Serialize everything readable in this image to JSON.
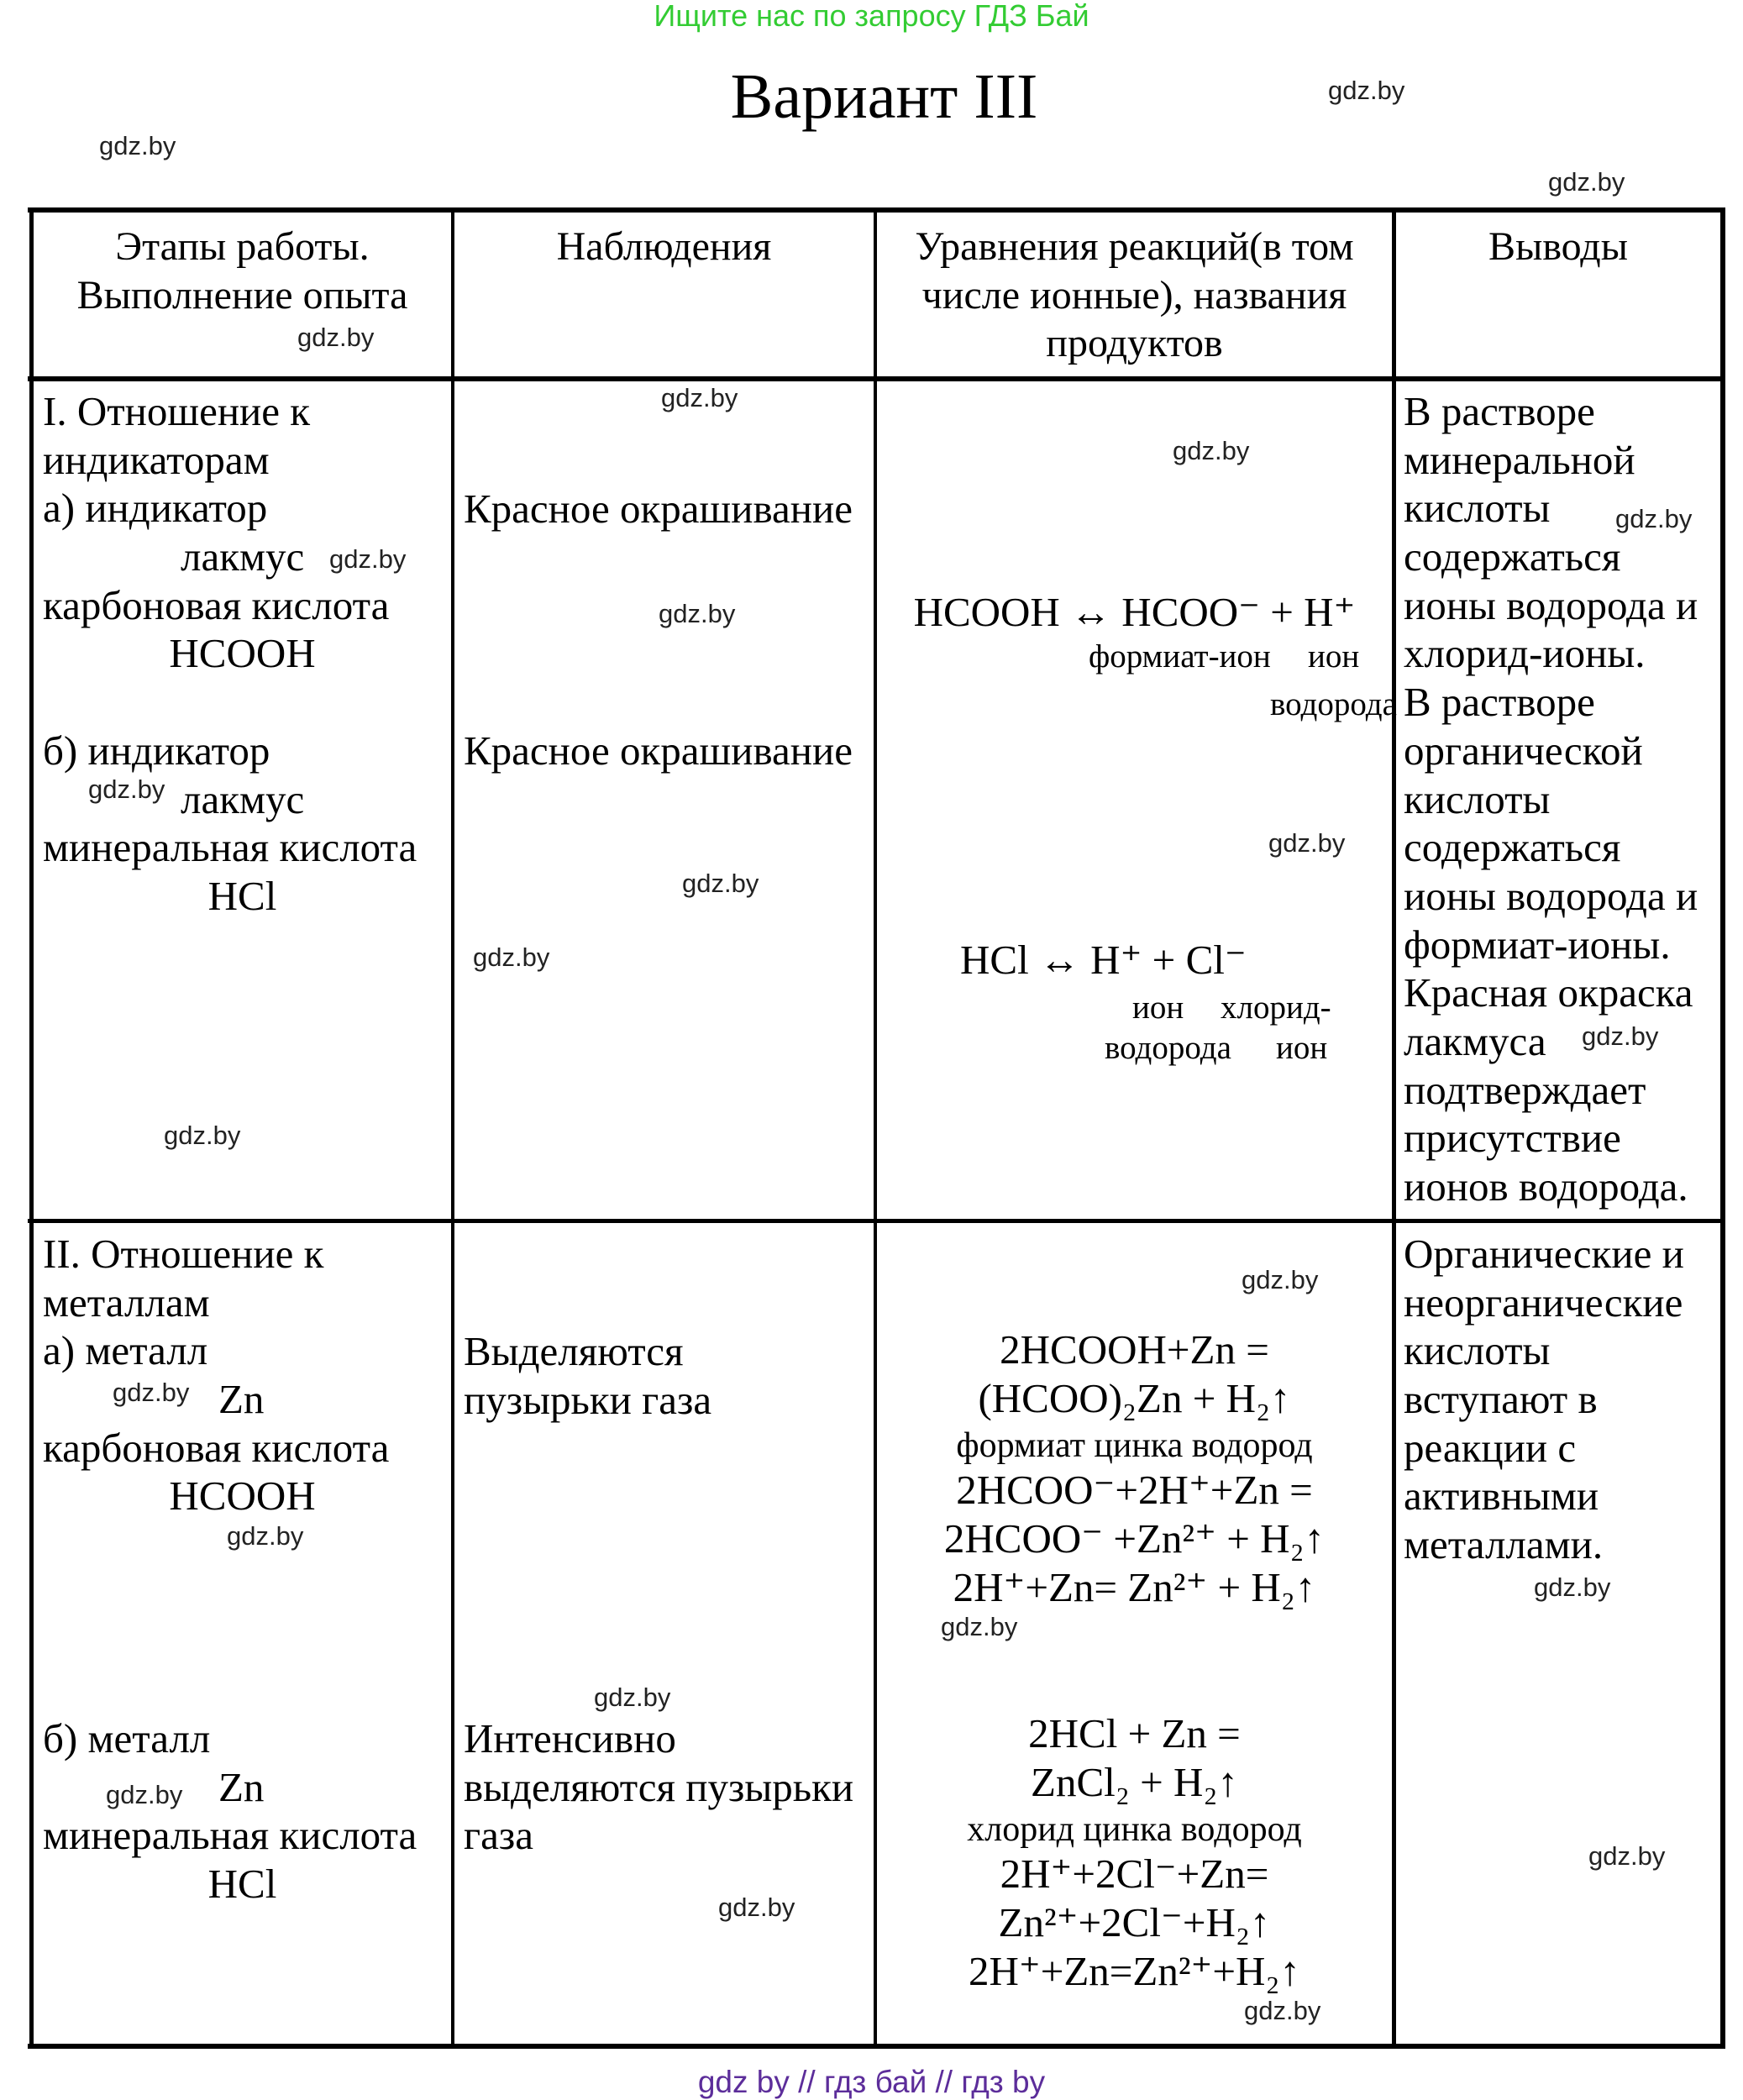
{
  "banner": "Ищите нас по запросу ГДЗ Бай",
  "title": "Вариант III",
  "watermark": "gdz.by",
  "footer": "gdz by  //  гдз бай  //  гдз by",
  "header": {
    "col1": [
      "Этапы работы.",
      "Выполнение опыта"
    ],
    "col2": "Наблюдения",
    "col3": [
      "Уравнения реакций(в том",
      "числе ионные), названия",
      "продуктов"
    ],
    "col4": "Выводы"
  },
  "row1": {
    "steps_a": [
      "I. Отношение к",
      "индикаторам",
      "а) индикатор",
      "лакмус",
      "карбоновая кислота",
      "HCOOH"
    ],
    "steps_b": [
      "б) индикатор",
      "лакмус",
      "минеральная кислота",
      "HCl"
    ],
    "obs_a": "Красное окрашивание",
    "obs_b": "Красное окрашивание",
    "eq_a": "HCOOH ↔ HCOO⁻ + H⁺",
    "eq_a_labels": [
      "формиат-ион",
      "ион",
      "водорода"
    ],
    "eq_b": "HCl  ↔  H⁺ + Cl⁻",
    "eq_b_labels": [
      "ион",
      "хлорид-",
      "водорода",
      "ион"
    ],
    "conclusion": [
      "В растворе",
      "минеральной",
      "кислоты",
      "содержаться",
      "ионы водорода и",
      "хлорид-ионы.",
      "В растворе",
      "органической",
      "кислоты",
      "содержаться",
      "ионы водорода и",
      "формиат-ионы.",
      "Красная окраска",
      "лакмуса",
      "подтверждает",
      "присутствие",
      "ионов водорода."
    ]
  },
  "row2": {
    "steps_a": [
      "II. Отношение к",
      "металлам",
      "а) металл",
      "Zn",
      "карбоновая кислота",
      "HCOOH"
    ],
    "steps_b": [
      "б) металл",
      "Zn",
      "минеральная кислота",
      "HCl"
    ],
    "obs_a": [
      "Выделяются",
      "пузырьки газа"
    ],
    "obs_b": [
      "Интенсивно",
      "выделяются пузырьки",
      "газа"
    ],
    "eq_a": [
      "2HCOOH+Zn =",
      "(HCOO)₂Zn     +     H₂↑",
      "формиат цинка       водород",
      "2HCOO⁻+2H⁺+Zn =",
      "2HCOO⁻ +Zn²⁺ + H₂↑",
      "2H⁺+Zn= Zn²⁺ + H₂↑"
    ],
    "eq_b": [
      "2HCl + Zn =",
      "ZnCl₂       +       H₂↑",
      "хлорид цинка         водород",
      "2H⁺+2Cl⁻+Zn=",
      "Zn²⁺+2Cl⁻+H₂↑",
      "2H⁺+Zn=Zn²⁺+H₂↑"
    ],
    "conclusion": [
      "Органические и",
      "неорганические",
      "кислоты",
      "вступают в",
      "реакции с",
      "активными",
      "металлами."
    ]
  }
}
